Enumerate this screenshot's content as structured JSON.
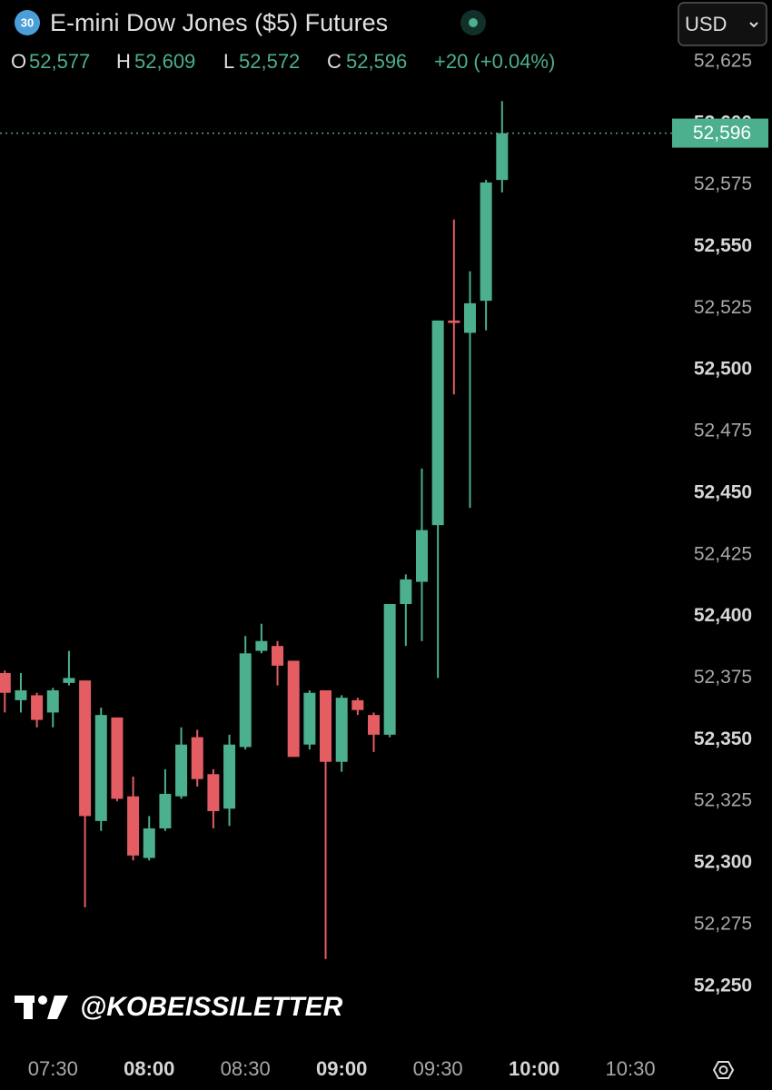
{
  "chart_data": {
    "type": "candlestick",
    "badge": "30",
    "title": "E-mini Dow Jones ($5) Futures",
    "currency": "USD",
    "ohlc": [
      {
        "name": "O",
        "label": "52,577"
      },
      {
        "name": "H",
        "label": "52,609"
      },
      {
        "name": "L",
        "label": "52,572"
      },
      {
        "name": "C",
        "label": "52,596"
      }
    ],
    "change": "+20 (+0.04%)",
    "last_price": {
      "value": 52596,
      "label": "52,596"
    },
    "watermark": "@KOBEISSILETTER",
    "up_color": "#4caf8e",
    "down_color": "#e35d63",
    "grid": false,
    "x": [
      435,
      440,
      445,
      450,
      455,
      460,
      465,
      470,
      475,
      480,
      485,
      490,
      495,
      500,
      505,
      510,
      515,
      520,
      525,
      530,
      535,
      540,
      545,
      550,
      555,
      560,
      565,
      570,
      575,
      580,
      585,
      590
    ],
    "open": [
      52377,
      52366,
      52368,
      52361,
      52373,
      52374,
      52317,
      52359,
      52327,
      52302,
      52314,
      52327,
      52351,
      52336,
      52322,
      52347,
      52386,
      52388,
      52382,
      52348,
      52370,
      52341,
      52366,
      52360,
      52352,
      52405,
      52414,
      52437,
      52520,
      52515,
      52528,
      52577
    ],
    "high": [
      52378,
      52377,
      52369,
      52371,
      52386,
      52374,
      52363,
      52359,
      52335,
      52319,
      52338,
      52355,
      52354,
      52338,
      52352,
      52392,
      52397,
      52390,
      52382,
      52370,
      52370,
      52368,
      52367,
      52361,
      52405,
      52417,
      52460,
      52520,
      52561,
      52540,
      52577,
      52609
    ],
    "low": [
      52361,
      52361,
      52355,
      52355,
      52372,
      52282,
      52313,
      52325,
      52301,
      52301,
      52313,
      52326,
      52331,
      52314,
      52315,
      52346,
      52385,
      52372,
      52343,
      52346,
      52261,
      52337,
      52360,
      52345,
      52351,
      52388,
      52390,
      52375,
      52490,
      52444,
      52516,
      52572
    ],
    "close": [
      52369,
      52370,
      52358,
      52370,
      52375,
      52319,
      52360,
      52326,
      52303,
      52314,
      52328,
      52348,
      52334,
      52321,
      52348,
      52385,
      52390,
      52380,
      52343,
      52369,
      52341,
      52367,
      52362,
      52352,
      52405,
      52415,
      52435,
      52520,
      52519,
      52527,
      52576,
      52596
    ],
    "xlim": [
      433.5,
      643
    ],
    "xticks": [
      {
        "value": 450,
        "label": "07:30"
      },
      {
        "value": 480,
        "label": "08:00"
      },
      {
        "value": 510,
        "label": "08:30"
      },
      {
        "value": 540,
        "label": "09:00"
      },
      {
        "value": 570,
        "label": "09:30"
      },
      {
        "value": 600,
        "label": "10:00"
      },
      {
        "value": 630,
        "label": "10:30"
      }
    ],
    "ylim": [
      52230,
      52650
    ],
    "yticks": [
      {
        "value": 52250,
        "label": "52,250"
      },
      {
        "value": 52275,
        "label": "52,275"
      },
      {
        "value": 52300,
        "label": "52,300"
      },
      {
        "value": 52325,
        "label": "52,325"
      },
      {
        "value": 52350,
        "label": "52,350"
      },
      {
        "value": 52375,
        "label": "52,375"
      },
      {
        "value": 52400,
        "label": "52,400"
      },
      {
        "value": 52425,
        "label": "52,425"
      },
      {
        "value": 52450,
        "label": "52,450"
      },
      {
        "value": 52475,
        "label": "52,475"
      },
      {
        "value": 52500,
        "label": "52,500"
      },
      {
        "value": 52525,
        "label": "52,525"
      },
      {
        "value": 52550,
        "label": "52,550"
      },
      {
        "value": 52575,
        "label": "52,575"
      },
      {
        "value": 52600,
        "label": "52,600"
      },
      {
        "value": 52625,
        "label": "52,625"
      }
    ]
  }
}
